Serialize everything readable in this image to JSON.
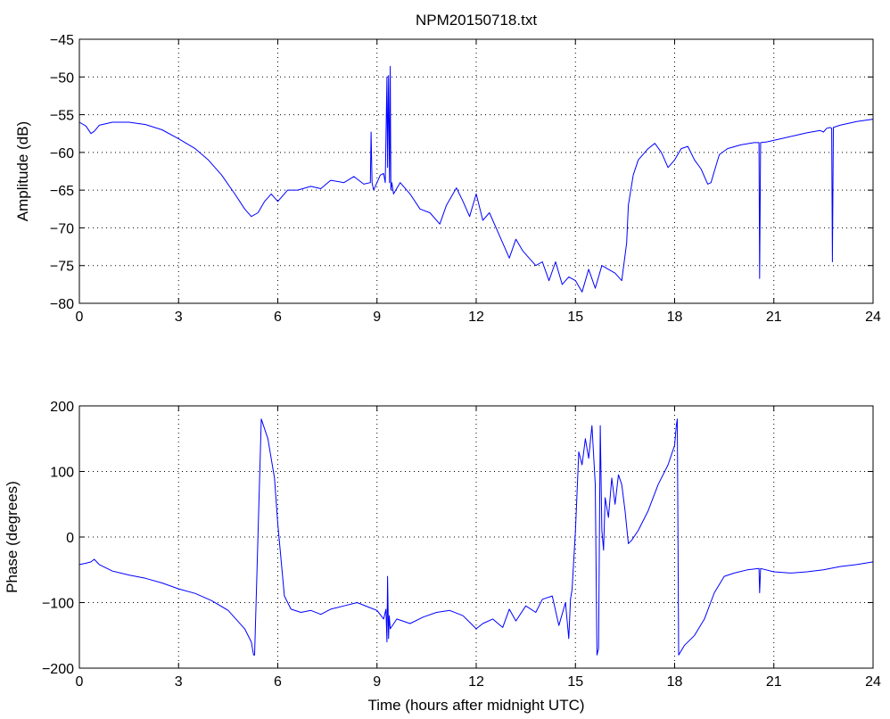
{
  "figure": {
    "title": "NPM20150718.txt"
  },
  "chart_data": [
    {
      "type": "line",
      "id": "amplitude",
      "title": "NPM20150718.txt",
      "xlabel": "",
      "ylabel": "Amplitude (dB)",
      "xlim": [
        0,
        24
      ],
      "ylim": [
        -80,
        -45
      ],
      "xticks": [
        0,
        3,
        6,
        9,
        12,
        15,
        18,
        21,
        24
      ],
      "yticks": [
        -80,
        -75,
        -70,
        -65,
        -60,
        -55,
        -50,
        -45
      ],
      "xtick_labels": [
        "0",
        "3",
        "6",
        "9",
        "12",
        "15",
        "18",
        "21",
        "24"
      ],
      "ytick_labels": [
        "−80",
        "−75",
        "−70",
        "−65",
        "−60",
        "−55",
        "−50",
        "−45"
      ],
      "grid": true,
      "color": "#0000ff",
      "series": [
        {
          "x": [
            0,
            0.2,
            0.35,
            0.45,
            0.6,
            1.0,
            1.5,
            2.0,
            2.5,
            3.0,
            3.5,
            3.9,
            4.3,
            4.7,
            5.0,
            5.2,
            5.4,
            5.6,
            5.8,
            6.0,
            6.3,
            6.6,
            7.0,
            7.3,
            7.6,
            8.0,
            8.3,
            8.6,
            8.8,
            8.82,
            8.85,
            8.9,
            9.1,
            9.2,
            9.25,
            9.3,
            9.32,
            9.35,
            9.38,
            9.4,
            9.42,
            9.45,
            9.5,
            9.7,
            10.0,
            10.3,
            10.6,
            10.9,
            11.1,
            11.4,
            11.6,
            11.8,
            12.0,
            12.2,
            12.4,
            12.6,
            12.8,
            13.0,
            13.2,
            13.4,
            13.6,
            13.8,
            14.0,
            14.2,
            14.4,
            14.6,
            14.8,
            15.0,
            15.2,
            15.4,
            15.6,
            15.8,
            16.0,
            16.2,
            16.4,
            16.55,
            16.6,
            16.75,
            16.9,
            17.2,
            17.4,
            17.6,
            17.8,
            18.0,
            18.2,
            18.4,
            18.6,
            18.8,
            19.0,
            19.1,
            19.2,
            19.35,
            19.6,
            20.0,
            20.4,
            20.55,
            20.57,
            20.6,
            20.8,
            21.2,
            21.6,
            22.0,
            22.4,
            22.5,
            22.6,
            22.7,
            22.75,
            22.77,
            22.8,
            23.0,
            23.5,
            24.0
          ],
          "y": [
            -56,
            -56.5,
            -57.5,
            -57.2,
            -56.4,
            -56,
            -56,
            -56.3,
            -57,
            -58.2,
            -59.5,
            -61,
            -63,
            -65.5,
            -67.5,
            -68.5,
            -68,
            -66.5,
            -65.5,
            -66.5,
            -65,
            -65,
            -64.5,
            -64.8,
            -63.7,
            -64,
            -63.2,
            -64.2,
            -64,
            -57.3,
            -64,
            -65,
            -63,
            -62.8,
            -64,
            -50,
            -62,
            -49.8,
            -64,
            -48.6,
            -65,
            -64,
            -65.5,
            -64,
            -65.5,
            -67.5,
            -68,
            -69.5,
            -67,
            -64.7,
            -66.5,
            -68.5,
            -65.5,
            -69,
            -68,
            -70,
            -72,
            -74,
            -71.5,
            -73,
            -74,
            -75,
            -74.5,
            -77,
            -74.5,
            -77.5,
            -76.5,
            -77,
            -78.5,
            -75.5,
            -78,
            -75,
            -75.5,
            -76,
            -77,
            -72,
            -67,
            -63,
            -61,
            -59.5,
            -58.8,
            -60,
            -62,
            -61,
            -59.5,
            -59.2,
            -61,
            -62.2,
            -64.2,
            -64,
            -62.5,
            -60.3,
            -59.5,
            -59,
            -58.7,
            -58.7,
            -76.7,
            -58.7,
            -58.6,
            -58.2,
            -57.8,
            -57.4,
            -57.1,
            -57.3,
            -56.8,
            -56.7,
            -56.8,
            -74.5,
            -56.7,
            -56.4,
            -55.9,
            -55.6
          ]
        }
      ]
    },
    {
      "type": "line",
      "id": "phase",
      "title": "",
      "xlabel": "Time (hours after midnight UTC)",
      "ylabel": "Phase (degrees)",
      "xlim": [
        0,
        24
      ],
      "ylim": [
        -200,
        200
      ],
      "xticks": [
        0,
        3,
        6,
        9,
        12,
        15,
        18,
        21,
        24
      ],
      "yticks": [
        -200,
        -100,
        0,
        100,
        200
      ],
      "xtick_labels": [
        "0",
        "3",
        "6",
        "9",
        "12",
        "15",
        "18",
        "21",
        "24"
      ],
      "ytick_labels": [
        "−200",
        "−100",
        "0",
        "100",
        "200"
      ],
      "grid": true,
      "color": "#0000ff",
      "series": [
        {
          "x": [
            0,
            0.2,
            0.35,
            0.45,
            0.6,
            1.0,
            1.5,
            2.0,
            2.5,
            3.0,
            3.5,
            4.0,
            4.5,
            5.0,
            5.2,
            5.25,
            5.27,
            5.3,
            5.5,
            5.7,
            5.9,
            6.0,
            6.2,
            6.4,
            6.7,
            7.0,
            7.3,
            7.6,
            8.0,
            8.4,
            8.8,
            9.0,
            9.2,
            9.27,
            9.3,
            9.32,
            9.35,
            9.37,
            9.4,
            9.6,
            10.0,
            10.4,
            10.8,
            11.2,
            11.6,
            11.8,
            12.0,
            12.2,
            12.5,
            12.8,
            13.0,
            13.2,
            13.5,
            13.8,
            14.0,
            14.3,
            14.5,
            14.7,
            14.8,
            14.85,
            14.9,
            15.0,
            15.1,
            15.2,
            15.3,
            15.4,
            15.5,
            15.6,
            15.65,
            15.7,
            15.75,
            15.8,
            15.85,
            15.9,
            16.0,
            16.1,
            16.2,
            16.3,
            16.4,
            16.5,
            16.6,
            16.7,
            16.9,
            17.2,
            17.5,
            17.8,
            18.0,
            18.05,
            18.08,
            18.12,
            18.3,
            18.6,
            18.9,
            19.2,
            19.5,
            19.8,
            20.2,
            20.55,
            20.57,
            20.6,
            21.0,
            21.5,
            22.0,
            22.5,
            23.0,
            23.5,
            24.0
          ],
          "y": [
            -42,
            -40,
            -38,
            -34,
            -42,
            -52,
            -58,
            -63,
            -70,
            -79,
            -86,
            -97,
            -112,
            -140,
            -160,
            -175,
            -180,
            -180,
            180,
            150,
            90,
            20,
            -90,
            -110,
            -115,
            -112,
            -118,
            -110,
            -105,
            -100,
            -108,
            -112,
            -125,
            -110,
            -160,
            -60,
            -155,
            -120,
            -140,
            -125,
            -132,
            -122,
            -115,
            -112,
            -120,
            -130,
            -140,
            -132,
            -125,
            -138,
            -110,
            -128,
            -105,
            -115,
            -95,
            -90,
            -135,
            -100,
            -155,
            -95,
            -80,
            10,
            130,
            110,
            150,
            120,
            170,
            80,
            -180,
            -170,
            170,
            10,
            -20,
            60,
            30,
            90,
            50,
            95,
            80,
            40,
            -10,
            -5,
            10,
            40,
            80,
            110,
            140,
            170,
            180,
            -180,
            -165,
            -150,
            -125,
            -85,
            -60,
            -55,
            -50,
            -48,
            -85,
            -48,
            -53,
            -55,
            -53,
            -50,
            -45,
            -42,
            -38
          ]
        }
      ]
    }
  ]
}
